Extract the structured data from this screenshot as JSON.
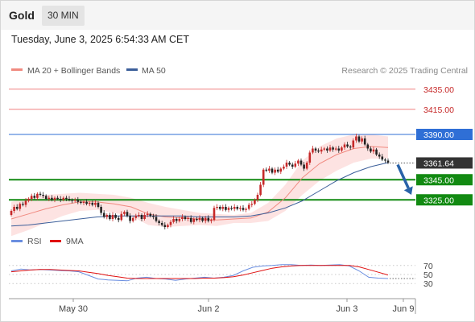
{
  "header": {
    "instrument": "Gold",
    "timeframe": "30 MIN",
    "timestamp": "Tuesday, June 3, 2025 6:54:33 AM CET"
  },
  "colors": {
    "ma20": "#f08a80",
    "bollinger_band": "#fde0df",
    "ma50": "#3c5f9a",
    "resistance": "#f08080",
    "pivot": "#2f6fd6",
    "support": "#128a12",
    "last_price": "#333333",
    "arrow": "#2962a8",
    "rsi": "#6a8ee0",
    "rsi_ma": "#e01010",
    "candle_up": "#c62828",
    "candle_down": "#222222"
  },
  "chart_data": {
    "type": "candlestick",
    "legend": [
      "MA 20 + Bollinger Bands",
      "MA 50"
    ],
    "credit": "Research © 2025 Trading Central",
    "x_tick_labels": [
      "May 30",
      "Jun 2",
      "Jun 3",
      "Jun 9"
    ],
    "price_axis": {
      "min": 3286,
      "max": 3446
    },
    "levels": [
      {
        "label": "3435.00",
        "value": 3435,
        "kind": "resistance"
      },
      {
        "label": "3415.00",
        "value": 3415,
        "kind": "resistance"
      },
      {
        "label": "3390.00",
        "value": 3390,
        "kind": "pivot"
      },
      {
        "label": "3345.00",
        "value": 3345,
        "kind": "support"
      },
      {
        "label": "3325.00",
        "value": 3325,
        "kind": "support"
      }
    ],
    "last_price": {
      "label": "3361.64",
      "value": 3361.64
    },
    "forecast_arrow": {
      "from": 3360,
      "to": 3330,
      "direction": "down"
    },
    "candles": [
      [
        3310,
        3314
      ],
      [
        3314,
        3318
      ],
      [
        3318,
        3316
      ],
      [
        3316,
        3321
      ],
      [
        3321,
        3320
      ],
      [
        3320,
        3324
      ],
      [
        3324,
        3326
      ],
      [
        3326,
        3329
      ],
      [
        3329,
        3327
      ],
      [
        3327,
        3331
      ],
      [
        3331,
        3330
      ],
      [
        3330,
        3329
      ],
      [
        3329,
        3326
      ],
      [
        3326,
        3327
      ],
      [
        3327,
        3325
      ],
      [
        3325,
        3327
      ],
      [
        3327,
        3326
      ],
      [
        3326,
        3325
      ],
      [
        3325,
        3327
      ],
      [
        3327,
        3326
      ],
      [
        3326,
        3325
      ],
      [
        3325,
        3324
      ],
      [
        3324,
        3325
      ],
      [
        3325,
        3323
      ],
      [
        3323,
        3322
      ],
      [
        3322,
        3323
      ],
      [
        3323,
        3321
      ],
      [
        3321,
        3322
      ],
      [
        3322,
        3320
      ],
      [
        3320,
        3322
      ],
      [
        3322,
        3318
      ],
      [
        3318,
        3312
      ],
      [
        3312,
        3308
      ],
      [
        3308,
        3310
      ],
      [
        3310,
        3306
      ],
      [
        3306,
        3310
      ],
      [
        3310,
        3307
      ],
      [
        3307,
        3305
      ],
      [
        3305,
        3311
      ],
      [
        3311,
        3313
      ],
      [
        3313,
        3309
      ],
      [
        3309,
        3304
      ],
      [
        3304,
        3307
      ],
      [
        3307,
        3309
      ],
      [
        3309,
        3310
      ],
      [
        3310,
        3306
      ],
      [
        3306,
        3310
      ],
      [
        3310,
        3311
      ],
      [
        3311,
        3309
      ],
      [
        3309,
        3308
      ],
      [
        3308,
        3304
      ],
      [
        3304,
        3302
      ],
      [
        3302,
        3300
      ],
      [
        3300,
        3298
      ],
      [
        3298,
        3300
      ],
      [
        3300,
        3303
      ],
      [
        3303,
        3306
      ],
      [
        3306,
        3304
      ],
      [
        3304,
        3306
      ],
      [
        3306,
        3308
      ],
      [
        3308,
        3306
      ],
      [
        3306,
        3307
      ],
      [
        3307,
        3303
      ],
      [
        3303,
        3306
      ],
      [
        3306,
        3305
      ],
      [
        3305,
        3307
      ],
      [
        3307,
        3304
      ],
      [
        3304,
        3307
      ],
      [
        3307,
        3304
      ],
      [
        3304,
        3305
      ],
      [
        3305,
        3317
      ],
      [
        3317,
        3318
      ],
      [
        3318,
        3316
      ],
      [
        3316,
        3318
      ],
      [
        3318,
        3315
      ],
      [
        3315,
        3317
      ],
      [
        3317,
        3316
      ],
      [
        3316,
        3318
      ],
      [
        3318,
        3316
      ],
      [
        3316,
        3317
      ],
      [
        3317,
        3315
      ],
      [
        3315,
        3316
      ],
      [
        3316,
        3320
      ],
      [
        3320,
        3321
      ],
      [
        3321,
        3325
      ],
      [
        3325,
        3330
      ],
      [
        3330,
        3340
      ],
      [
        3340,
        3355
      ],
      [
        3355,
        3354
      ],
      [
        3354,
        3356
      ],
      [
        3356,
        3352
      ],
      [
        3352,
        3355
      ],
      [
        3355,
        3353
      ],
      [
        3353,
        3356
      ],
      [
        3356,
        3358
      ],
      [
        3358,
        3362
      ],
      [
        3362,
        3360
      ],
      [
        3360,
        3358
      ],
      [
        3358,
        3361
      ],
      [
        3361,
        3364
      ],
      [
        3364,
        3360
      ],
      [
        3360,
        3356
      ],
      [
        3356,
        3362
      ],
      [
        3362,
        3372
      ],
      [
        3372,
        3376
      ],
      [
        3376,
        3374
      ],
      [
        3374,
        3373
      ],
      [
        3373,
        3375
      ],
      [
        3375,
        3376
      ],
      [
        3376,
        3374
      ],
      [
        3374,
        3377
      ],
      [
        3377,
        3375
      ],
      [
        3375,
        3376
      ],
      [
        3376,
        3374
      ],
      [
        3374,
        3377
      ],
      [
        3377,
        3380
      ],
      [
        3380,
        3378
      ],
      [
        3378,
        3377
      ],
      [
        3377,
        3384
      ],
      [
        3384,
        3388
      ],
      [
        3388,
        3383
      ],
      [
        3383,
        3386
      ],
      [
        3386,
        3380
      ],
      [
        3380,
        3376
      ],
      [
        3376,
        3373
      ],
      [
        3373,
        3375
      ],
      [
        3375,
        3370
      ],
      [
        3370,
        3368
      ],
      [
        3368,
        3365
      ],
      [
        3365,
        3364
      ],
      [
        3364,
        3362
      ]
    ],
    "ma20": [
      3306,
      3311,
      3316,
      3320,
      3323,
      3323,
      3321,
      3318,
      3311,
      3308,
      3307,
      3306,
      3305,
      3306,
      3307,
      3313,
      3327,
      3347,
      3361,
      3370,
      3376,
      3378,
      3377
    ],
    "bb_upper": [
      3323,
      3327,
      3330,
      3331,
      3332,
      3331,
      3330,
      3327,
      3322,
      3318,
      3315,
      3312,
      3311,
      3310,
      3312,
      3322,
      3340,
      3364,
      3378,
      3386,
      3390,
      3390,
      3388
    ],
    "bb_lower": [
      3289,
      3295,
      3302,
      3309,
      3314,
      3315,
      3312,
      3309,
      3300,
      3298,
      3299,
      3300,
      3299,
      3302,
      3302,
      3304,
      3314,
      3330,
      3344,
      3354,
      3362,
      3366,
      3366
    ],
    "ma50": [
      3299,
      3300,
      3302,
      3304,
      3306,
      3308,
      3309,
      3309,
      3309,
      3309,
      3309,
      3308,
      3308,
      3308,
      3309,
      3312,
      3317,
      3324,
      3334,
      3344,
      3352,
      3358,
      3362
    ],
    "rsi_panel": {
      "legend": [
        "RSI",
        "9MA"
      ],
      "y_ticks": [
        30,
        50,
        70
      ],
      "rsi": [
        58,
        62,
        60,
        61,
        60,
        59,
        58,
        56,
        48,
        40,
        38,
        37,
        36,
        42,
        44,
        41,
        40,
        37,
        40,
        42,
        44,
        42,
        44,
        48,
        58,
        66,
        69,
        70,
        72,
        72,
        70,
        71,
        70,
        71,
        72,
        69,
        58,
        44,
        42,
        41
      ],
      "rsi_ma": [
        56,
        58,
        60,
        61,
        61,
        60,
        59,
        58,
        55,
        52,
        48,
        45,
        42,
        41,
        41,
        41,
        41,
        41,
        41,
        41,
        42,
        42,
        43,
        45,
        49,
        54,
        59,
        64,
        67,
        69,
        70,
        70,
        70,
        70,
        70,
        70,
        67,
        61,
        55,
        49
      ]
    }
  }
}
